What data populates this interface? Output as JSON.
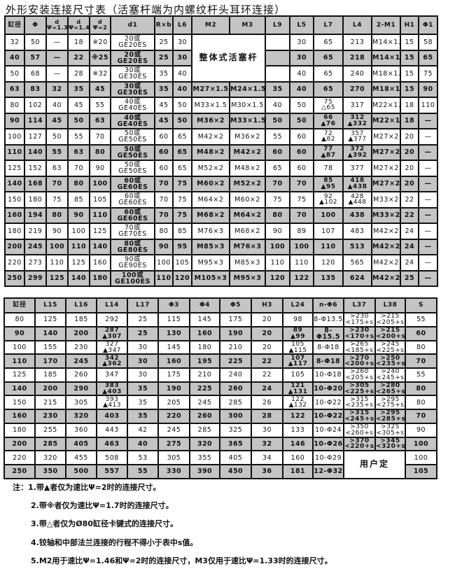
{
  "title": "外形安装连接尺寸表（活塞杆端为内螺纹杆头耳环连接）",
  "table1": {
    "headers": [
      "缸径",
      "Φ",
      "d\nΨ=1.33",
      "d\nΨ=1.46",
      "d\nΨ=2",
      "d1",
      "R×b",
      "L6",
      "M2",
      "M3",
      "L9",
      "L5",
      "L7",
      "L4",
      "2-M1",
      "H1",
      "Φ1"
    ],
    "rows": [
      [
        "32",
        "50",
        "—",
        "18",
        "※20",
        "20或GE20ES",
        "25",
        "30",
        {
          "text": "整体式活塞杆",
          "colspan": 2,
          "rowspan": 3
        },
        "",
        "30",
        "65",
        "213",
        "M14×1.5",
        "15",
        "58"
      ],
      [
        "40",
        "57",
        "—",
        "22",
        "※25",
        "20或GE20ES",
        "25",
        "30",
        "",
        "30",
        "65",
        "218",
        "M14×1.5",
        "15",
        "65"
      ],
      [
        "50",
        "68",
        "—",
        "28",
        "※32",
        "30或GE30ES",
        "35",
        "40",
        "",
        "40",
        "65",
        "240",
        "M18×1.5",
        "15",
        "75"
      ],
      [
        "63",
        "83",
        "32",
        "35",
        "45",
        "30或GE30ES",
        "35",
        "40",
        "M27×1.5",
        "M24×1.5",
        "35",
        "40",
        "65",
        "270",
        "M18×1.5",
        "15",
        "90"
      ],
      [
        "80",
        "102",
        "40",
        "45",
        "55",
        "40或GE40ES",
        "45",
        "50",
        "M33×1.5",
        "M30×1.5",
        "40",
        "50",
        "75\n△65",
        "317",
        "M22×1.5",
        "18",
        "110"
      ],
      [
        "90",
        "114",
        "45",
        "50",
        "63",
        "40或GE40ES",
        "45",
        "50",
        "M36×2",
        "M33×1.5",
        "50",
        "50",
        "66\n▲76",
        "312\n▲332",
        "M22×1.5",
        "18",
        "—"
      ],
      [
        "100",
        "127",
        "50",
        "55",
        "70",
        "50或GE50ES",
        "60",
        "65",
        "M42×2",
        "M36×2",
        "55",
        "60",
        "72\n▲82",
        "357\n▲377",
        "M27×2",
        "20",
        "—"
      ],
      [
        "110",
        "140",
        "55",
        "63",
        "80",
        "50或GE50ES",
        "60",
        "65",
        "M48×2",
        "M42×2",
        "60",
        "60",
        "77\n▲87",
        "372\n▲392",
        "M27×2",
        "20",
        "—"
      ],
      [
        "125",
        "152",
        "63",
        "70",
        "90",
        "50或GE50ES",
        "60",
        "65",
        "M52×2",
        "M48×2",
        "65",
        "60",
        "78",
        "377",
        "M27×2",
        "20",
        "—"
      ],
      [
        "140",
        "168",
        "70",
        "80",
        "100",
        "60或GE60ES",
        "70",
        "75",
        "M60×2",
        "M52×2",
        "70",
        "70",
        "85\n▲95",
        "418\n▲438",
        "M27×2",
        "20",
        "—"
      ],
      [
        "150",
        "180",
        "75",
        "85",
        "105",
        "60或GE60ES",
        "70",
        "75",
        "M64×2",
        "M60×2",
        "75",
        "75",
        "92\n▲102",
        "428\n▲448",
        "M33×2",
        "22",
        "—"
      ],
      [
        "160",
        "194",
        "80",
        "90",
        "110",
        "60或GE60ES",
        "70",
        "75",
        "M68×2",
        "M64×2",
        "80",
        "70",
        "100",
        "438",
        "M33×2",
        "22",
        "—"
      ],
      [
        "180",
        "219",
        "90",
        "100",
        "125",
        "70或GE70ES",
        "80",
        "85",
        "M76×3",
        "M68×2",
        "90",
        "89",
        "107",
        "483",
        "M42×2",
        "24",
        "—"
      ],
      [
        "200",
        "245",
        "100",
        "110",
        "140",
        "80或GE80ES",
        "90",
        "95",
        "M85×3",
        "M76×3",
        "100",
        "100",
        "110",
        "513",
        "M42×2",
        "24",
        "—"
      ],
      [
        "220",
        "273",
        "110",
        "125",
        "160",
        "90或GE90ES",
        "100",
        "105",
        "M95×3",
        "M85×3",
        "110",
        "110",
        "120",
        "565",
        "M42×2",
        "24",
        "—"
      ],
      [
        "250",
        "299",
        "125",
        "140",
        "180",
        "100或GE100ES",
        "110",
        "120",
        "M105×3",
        "M95×3",
        "120",
        "122",
        "135",
        "624",
        "M42×2",
        "25",
        "—"
      ]
    ]
  },
  "table2": {
    "headers": [
      "缸径",
      "L15",
      "L16",
      "L14",
      "L17",
      "Φ3",
      "Φ4",
      "Φ5",
      "H3",
      "L24",
      "n-Φ6",
      "L37",
      "L38",
      "S"
    ],
    "rows": [
      [
        "80",
        "125",
        "185",
        "292",
        "25",
        "115",
        "145",
        "175",
        "20",
        "98",
        "8-Φ13.5",
        ">230\n<175+s",
        ">215\n<205+s",
        "55"
      ],
      [
        "90",
        "140",
        "200",
        "287\n▲307",
        "25",
        "130",
        "160",
        "190",
        "20",
        "89\n▲99",
        "8-Φ15.5",
        ">230\n<170+s",
        ">215\n<200+s",
        "60"
      ],
      [
        "100",
        "155",
        "230",
        "327\n▲347",
        "30",
        "145",
        "180",
        "210",
        "20",
        "105\n▲115",
        "8-Φ18",
        ">265\n<185+s",
        ">245\n<225+s",
        "80"
      ],
      [
        "110",
        "170",
        "245",
        "342\n▲362",
        "30",
        "160",
        "195",
        "225",
        "22",
        "107\n▲117",
        "8-Φ18",
        ">270\n<200+s",
        ">250\n<235+s",
        "70"
      ],
      [
        "125",
        "185",
        "260",
        "347",
        "30",
        "175",
        "210",
        "240",
        "22",
        "105",
        "10-Φ18",
        ">260\n<205+s",
        ">240\n<245+s",
        "55"
      ],
      [
        "140",
        "200",
        "290",
        "383\n▲403",
        "35",
        "190",
        "225",
        "260",
        "24",
        "121\n▲131",
        "10-Φ20",
        ">305\n<225+s",
        ">280\n<265+s",
        "80"
      ],
      [
        "150",
        "215",
        "305",
        "393\n▲413",
        "35",
        "205",
        "245",
        "285",
        "26",
        "122\n▲132",
        "10-Φ22",
        ">315\n<235+s",
        ">295\n<275+s",
        "80"
      ],
      [
        "160",
        "230",
        "320",
        "403",
        "35",
        "220",
        "260",
        "300",
        "28",
        "122",
        "10-Φ22",
        ">315\n<245+s",
        ">295\n<285+s",
        "70"
      ],
      [
        "180",
        "255",
        "360",
        "443",
        "42",
        "245",
        "285",
        "325",
        "30",
        "133",
        "10-Φ24",
        ">350\n<260+s",
        ">325\n<305+s",
        "90"
      ],
      [
        "200",
        "285",
        "405",
        "463",
        "40",
        "275",
        "320",
        "365",
        "32",
        "146",
        "10-Φ26",
        ">370\n<220+s",
        ">345\n<320+s",
        "100"
      ],
      [
        "220",
        "320",
        "455",
        "508",
        "53",
        "305",
        "355",
        "405",
        "34",
        "160",
        "10-Φ29",
        {
          "text": "用户定",
          "colspan": 2,
          "rowspan": 2
        },
        "100"
      ],
      [
        "250",
        "350",
        "500",
        "557",
        "55",
        "330",
        "390",
        "450",
        "36",
        "181",
        "12-Φ32",
        "105"
      ]
    ]
  },
  "notes": [
    "注：1.带▲者仅为速比Ψ=2时的连接尺寸。",
    "2.带※者仅为速比Ψ=1.7时的连接尺寸。",
    "3.带△者仅为Ø80缸径卡键式的连接尺寸。",
    "4.铰轴和中部法兰连接的行程不得小于表中s值。",
    "5.M2用于速比Ψ=1.46和Ψ=2时的连接尺寸，M3仅用于速比Ψ=1.33时的连接尺寸。"
  ]
}
